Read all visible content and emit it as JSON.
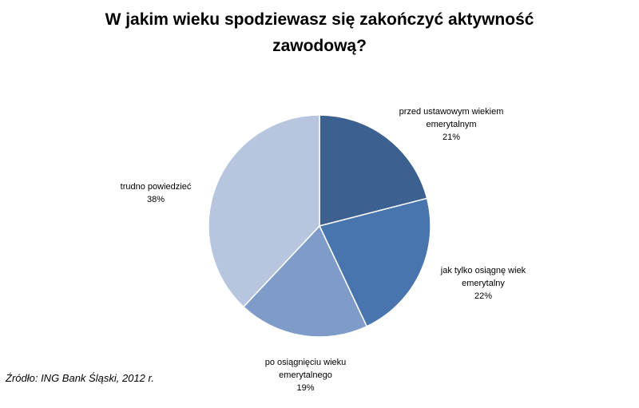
{
  "chart_data": {
    "type": "pie",
    "title": "W jakim wieku spodziewasz się zakończyć aktywność zawodową?",
    "slices": [
      {
        "label_lines": [
          "przed ustawowym  wiekiem",
          "emerytalnym"
        ],
        "value": 21,
        "value_label": "21%",
        "color": "#3c6090"
      },
      {
        "label_lines": [
          "jak tylko osiągnę wiek",
          "emerytalny"
        ],
        "value": 22,
        "value_label": "22%",
        "color": "#4975ae"
      },
      {
        "label_lines": [
          "po osiągnięciu wieku",
          "emerytalnego"
        ],
        "value": 19,
        "value_label": "19%",
        "color": "#7f9cc8"
      },
      {
        "label_lines": [
          "trudno powiedzieć"
        ],
        "value": 38,
        "value_label": "38%",
        "color": "#b7c5df"
      }
    ]
  },
  "footer": {
    "source": "Źródło: ING Bank Śląski, 2012 r."
  }
}
